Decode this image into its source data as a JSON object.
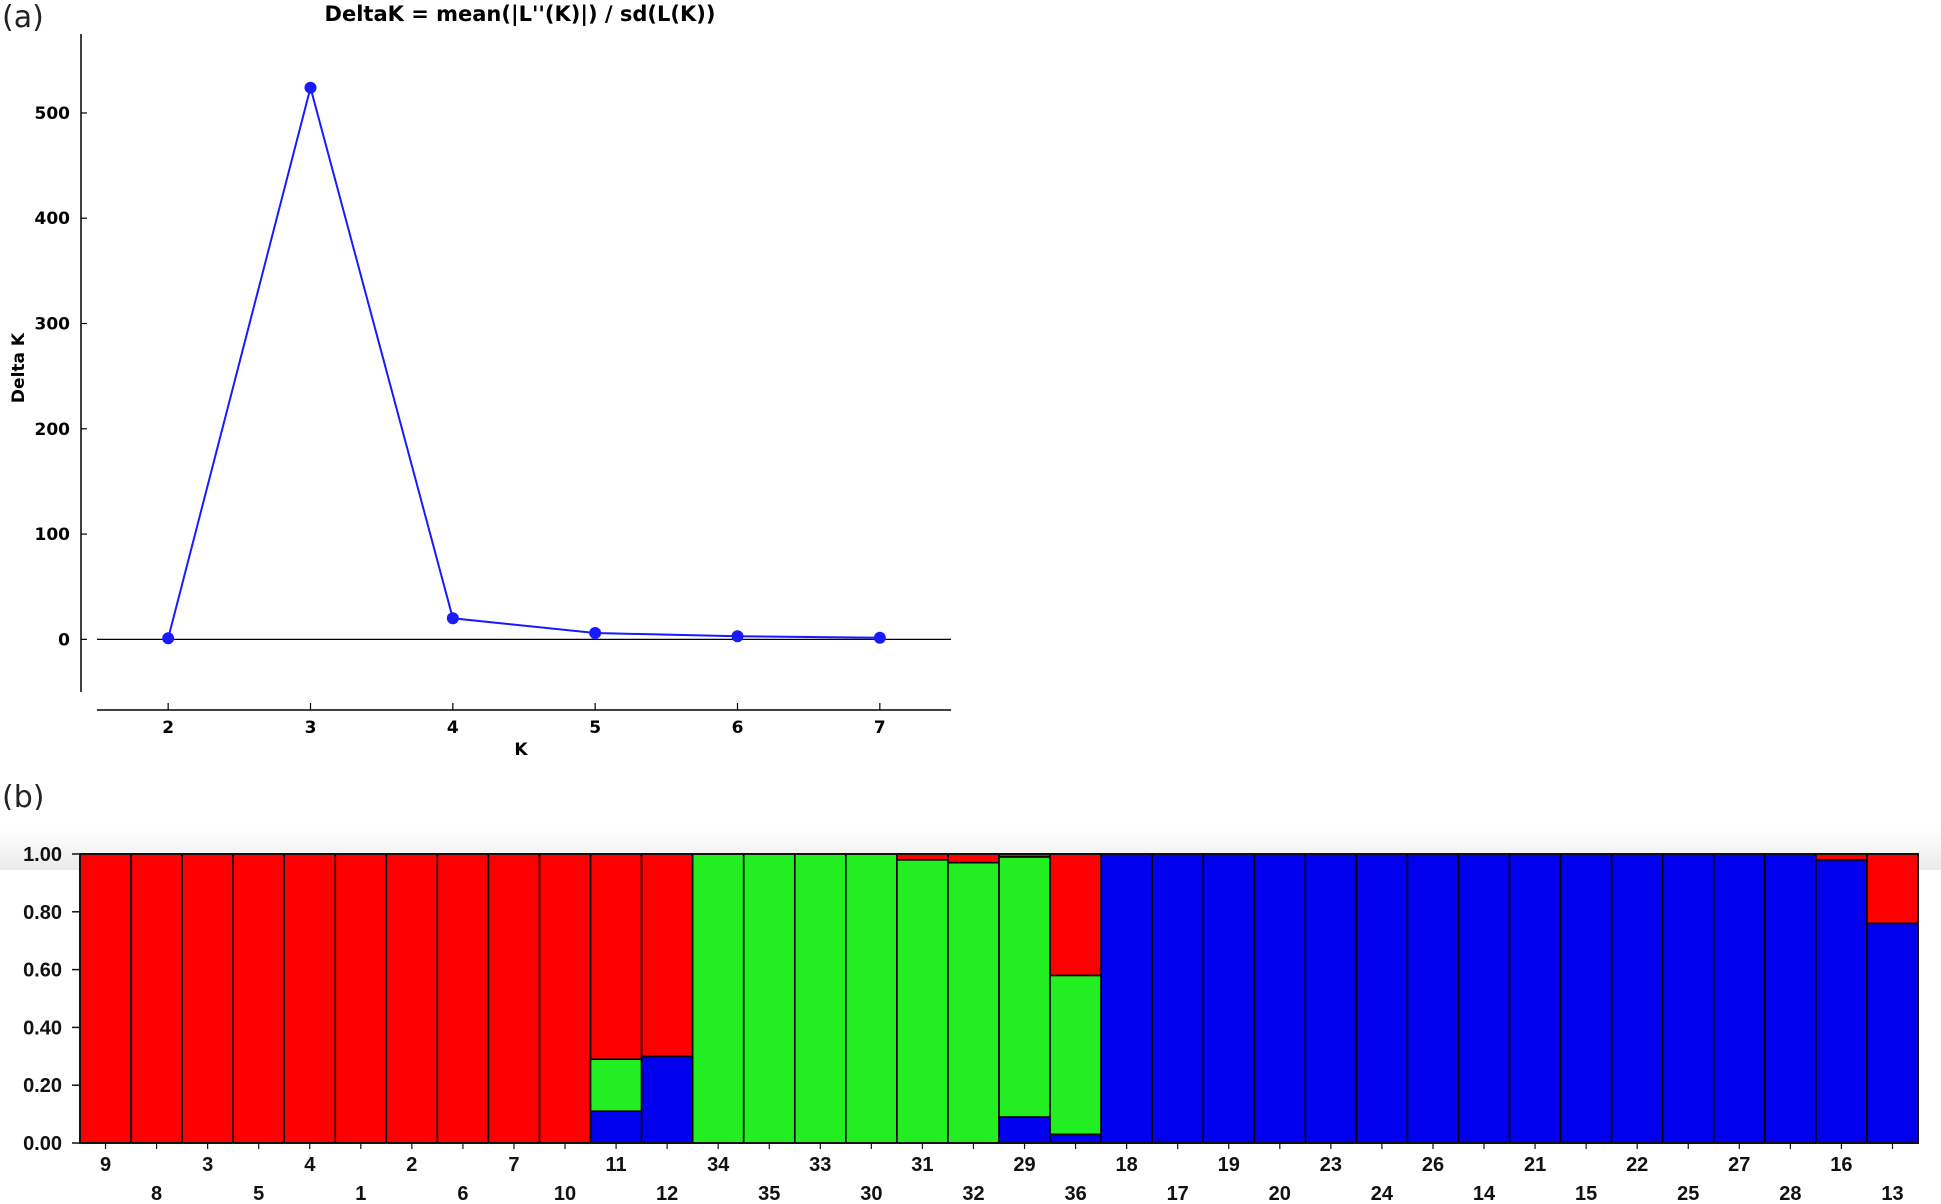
{
  "panel_a_label": "(a)",
  "panel_b_label": "(b)",
  "chart_data": [
    {
      "type": "line",
      "title": "DeltaK = mean(|L''(K)|) / sd(L(K))",
      "xlabel": "K",
      "ylabel": "Delta K",
      "x": [
        2,
        3,
        4,
        5,
        6,
        7
      ],
      "y": [
        1,
        524,
        20,
        6,
        3,
        1.5
      ],
      "xlim": [
        1.5,
        7.5
      ],
      "ylim": [
        -50,
        575
      ],
      "xticks": [
        "2",
        "3",
        "4",
        "5",
        "6",
        "7"
      ],
      "yticks": [
        "0",
        "100",
        "200",
        "300",
        "400",
        "500"
      ],
      "color": "#1a1aff",
      "grid": false
    },
    {
      "type": "bar",
      "stacked": true,
      "categories": [
        "9",
        "8",
        "3",
        "5",
        "4",
        "1",
        "2",
        "6",
        "7",
        "10",
        "11",
        "12",
        "34",
        "35",
        "33",
        "30",
        "31",
        "32",
        "29",
        "36",
        "18",
        "17",
        "19",
        "20",
        "23",
        "24",
        "26",
        "14",
        "21",
        "15",
        "22",
        "25",
        "27",
        "28",
        "16",
        "13"
      ],
      "ylim": [
        0,
        1
      ],
      "yticks": [
        "0.00",
        "0.20",
        "0.40",
        "0.60",
        "0.80",
        "1.00"
      ],
      "series": [
        {
          "color": "#0000ee",
          "values": [
            0,
            0,
            0,
            0,
            0,
            0,
            0,
            0,
            0,
            0,
            0.11,
            0.3,
            0,
            0,
            0,
            0,
            0,
            0,
            0.09,
            0.03,
            1,
            1,
            1,
            1,
            1,
            1,
            1,
            1,
            1,
            1,
            1,
            1,
            1,
            1,
            0.98,
            0.76
          ]
        },
        {
          "color": "#22ee22",
          "values": [
            0,
            0,
            0,
            0,
            0,
            0,
            0,
            0,
            0,
            0,
            0.18,
            0,
            1,
            1,
            1,
            1,
            0.98,
            0.97,
            0.9,
            0.55,
            0,
            0,
            0,
            0,
            0,
            0,
            0,
            0,
            0,
            0,
            0,
            0,
            0,
            0,
            0,
            0
          ]
        },
        {
          "color": "#ff0000",
          "values": [
            1,
            1,
            1,
            1,
            1,
            1,
            1,
            1,
            1,
            1,
            0.71,
            0.7,
            0,
            0,
            0,
            0,
            0.02,
            0.03,
            0.01,
            0.42,
            0,
            0,
            0,
            0,
            0,
            0,
            0,
            0,
            0,
            0,
            0,
            0,
            0,
            0,
            0.02,
            0.24
          ]
        }
      ]
    }
  ]
}
